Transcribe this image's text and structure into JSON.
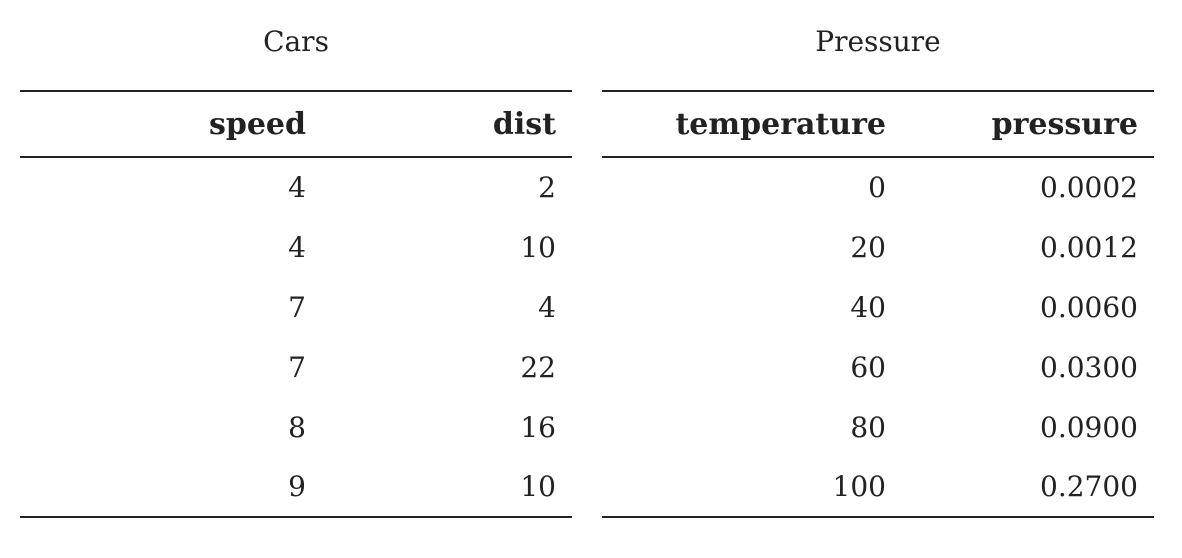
{
  "tables": [
    {
      "caption": "Cars",
      "columns": [
        "speed",
        "dist"
      ],
      "rows": [
        [
          "4",
          "2"
        ],
        [
          "4",
          "10"
        ],
        [
          "7",
          "4"
        ],
        [
          "7",
          "22"
        ],
        [
          "8",
          "16"
        ],
        [
          "9",
          "10"
        ]
      ]
    },
    {
      "caption": "Pressure",
      "columns": [
        "temperature",
        "pressure"
      ],
      "rows": [
        [
          "0",
          "0.0002"
        ],
        [
          "20",
          "0.0012"
        ],
        [
          "40",
          "0.0060"
        ],
        [
          "60",
          "0.0300"
        ],
        [
          "80",
          "0.0900"
        ],
        [
          "100",
          "0.2700"
        ]
      ]
    }
  ]
}
